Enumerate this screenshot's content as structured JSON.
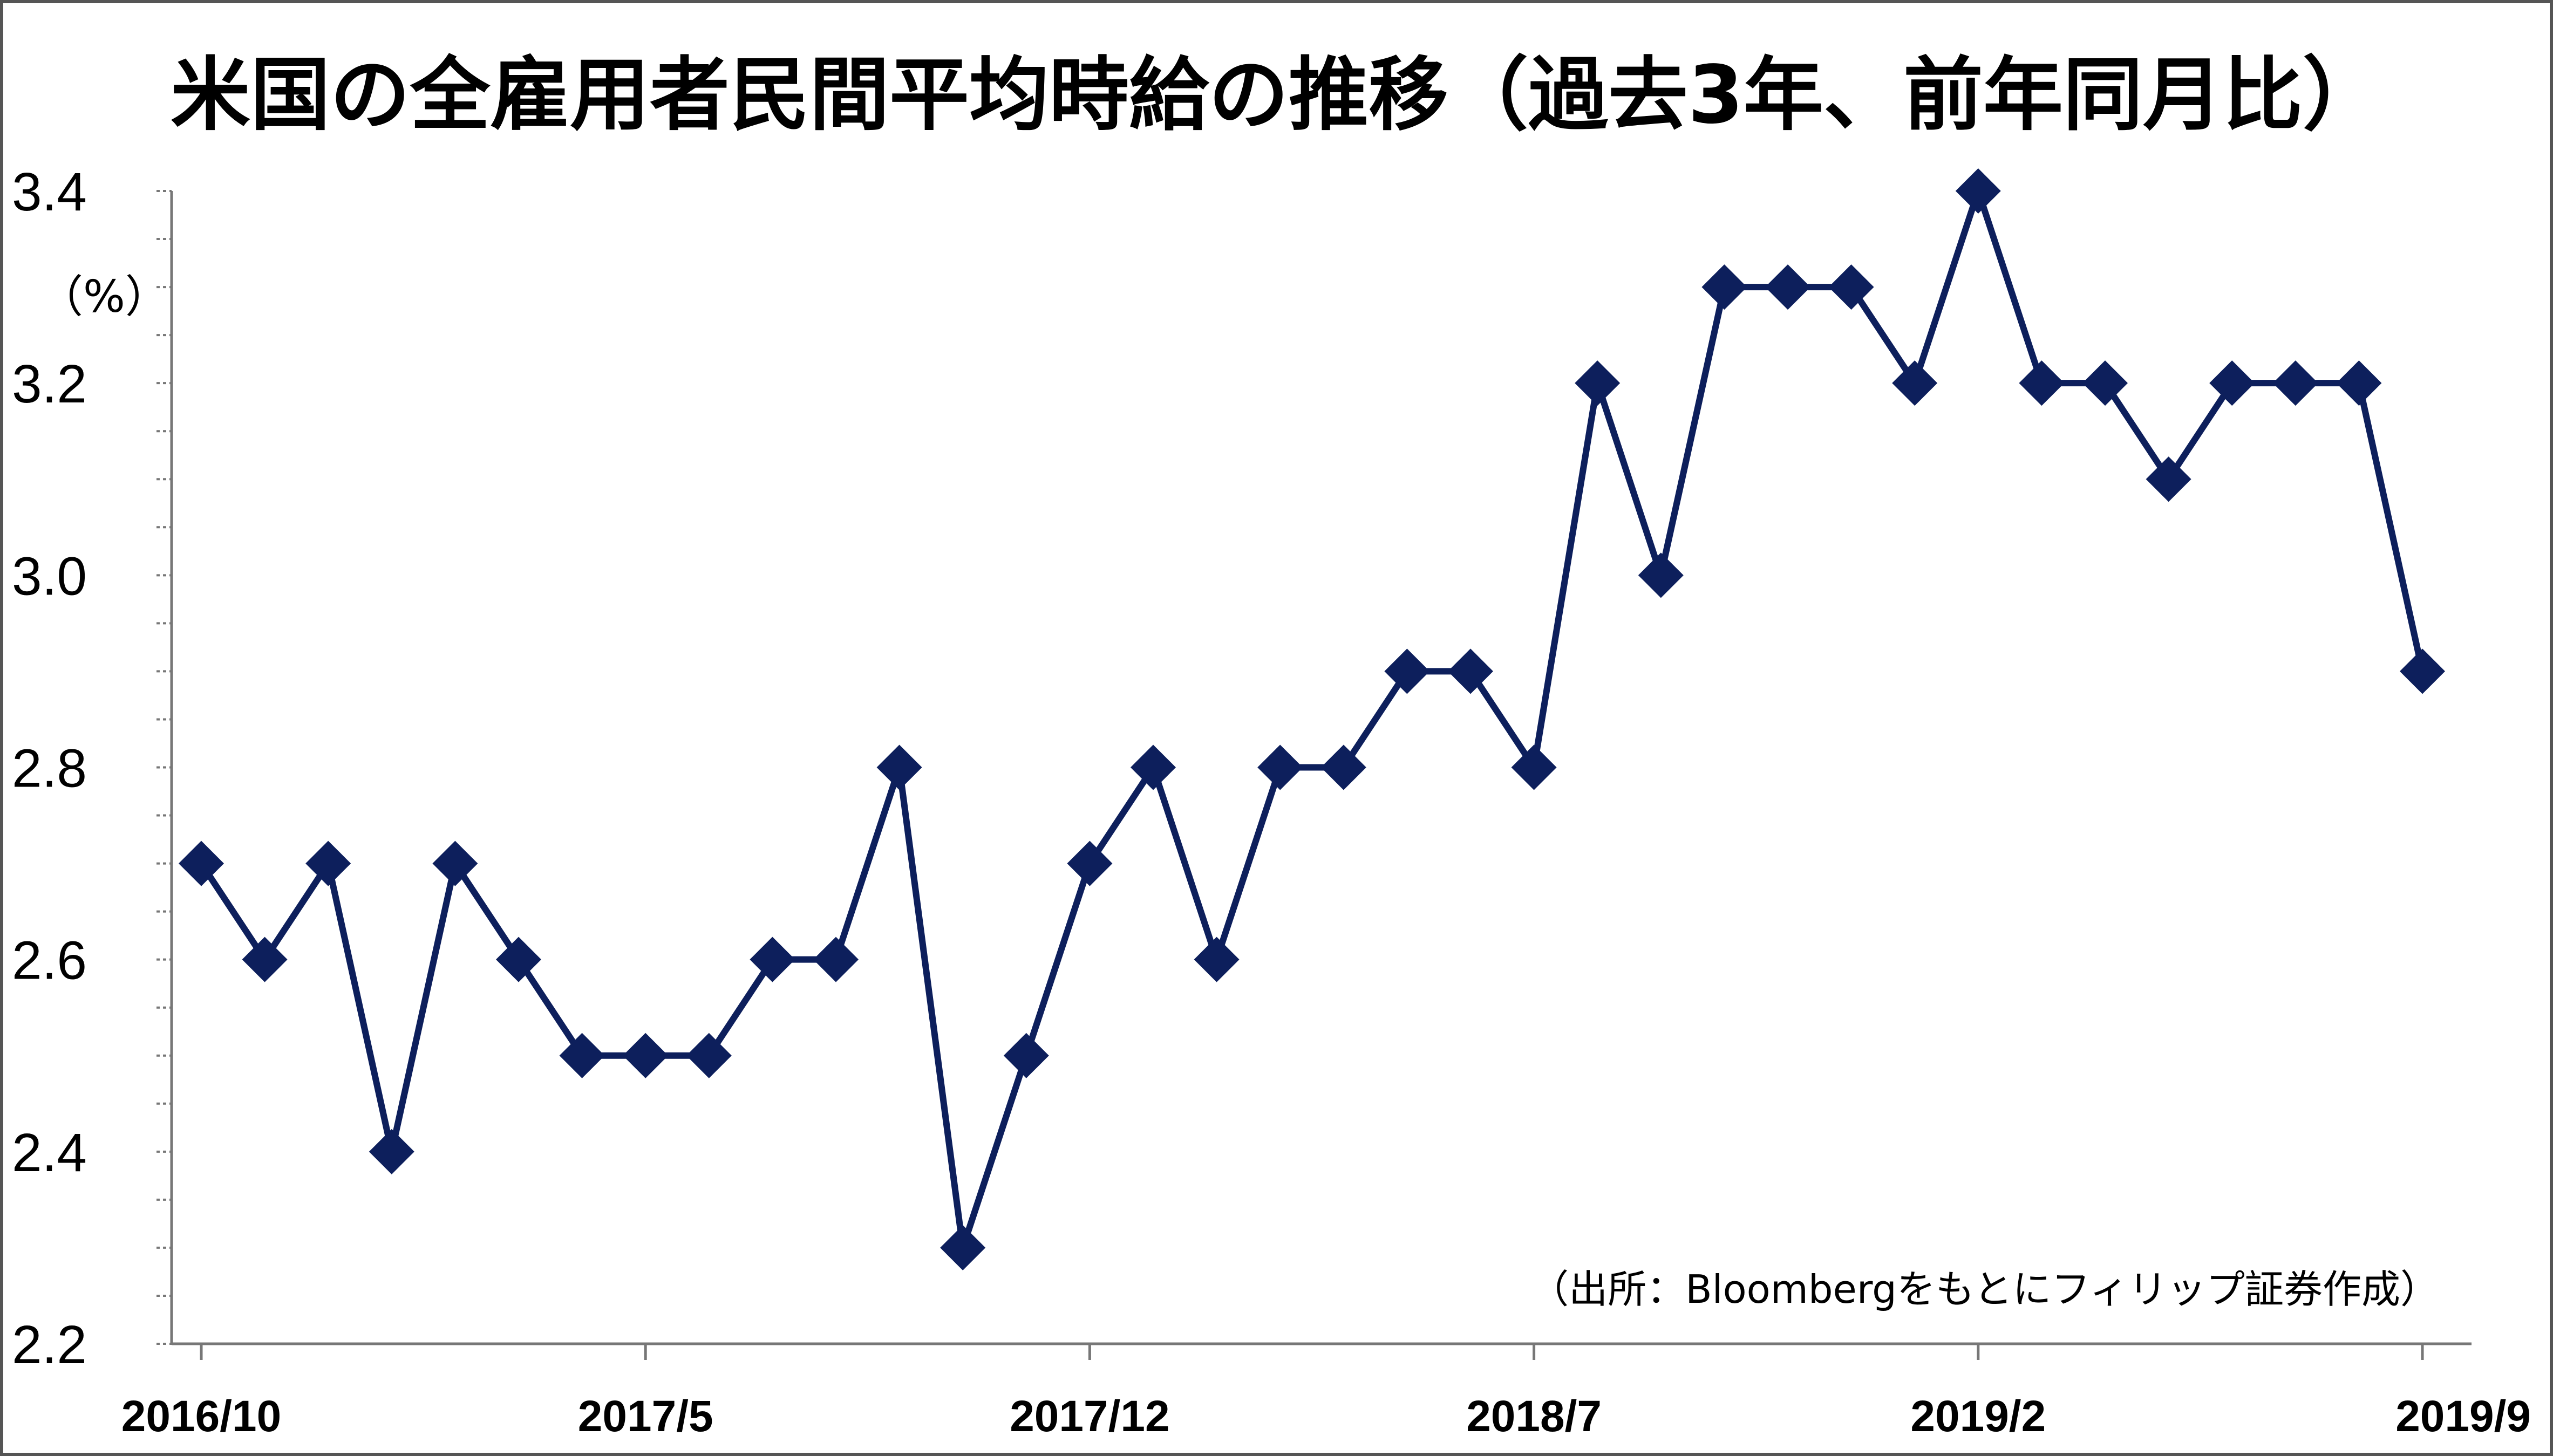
{
  "chart_data": {
    "type": "line",
    "title": "米国の全雇用者民間平均時給の推移（過去3年、前年同月比）",
    "ylabel": "（%）",
    "source_note": "（出所：Bloombergをもとにフィリップ証券作成）",
    "ylim": [
      2.2,
      3.4
    ],
    "yticks": [
      "2.2",
      "2.4",
      "2.6",
      "2.8",
      "3.0",
      "3.2",
      "3.4"
    ],
    "x_start": "2016/10",
    "x_labels": [
      "2016/10",
      "2017/5",
      "2017/12",
      "2018/7",
      "2019/2",
      "2019/9"
    ],
    "x": [
      "2016/10",
      "2016/11",
      "2016/12",
      "2017/1",
      "2017/2",
      "2017/3",
      "2017/4",
      "2017/5",
      "2017/6",
      "2017/7",
      "2017/8",
      "2017/9",
      "2017/10",
      "2017/11",
      "2017/12",
      "2018/1",
      "2018/2",
      "2018/3",
      "2018/4",
      "2018/5",
      "2018/6",
      "2018/7",
      "2018/8",
      "2018/9",
      "2018/10",
      "2018/11",
      "2018/12",
      "2019/1",
      "2019/2",
      "2019/3",
      "2019/4",
      "2019/5",
      "2019/6",
      "2019/7",
      "2019/8",
      "2019/9"
    ],
    "series": [
      {
        "name": "",
        "color": "#0d1f5c",
        "marker": "diamond",
        "values": [
          2.7,
          2.6,
          2.7,
          2.4,
          2.7,
          2.6,
          2.5,
          2.5,
          2.5,
          2.6,
          2.6,
          2.8,
          2.3,
          2.5,
          2.7,
          2.8,
          2.6,
          2.8,
          2.8,
          2.9,
          2.9,
          2.8,
          3.2,
          3.0,
          3.3,
          3.3,
          3.3,
          3.2,
          3.4,
          3.2,
          3.2,
          3.1,
          3.2,
          3.2,
          3.2,
          2.9
        ]
      }
    ],
    "grid": false,
    "legend": "none"
  }
}
